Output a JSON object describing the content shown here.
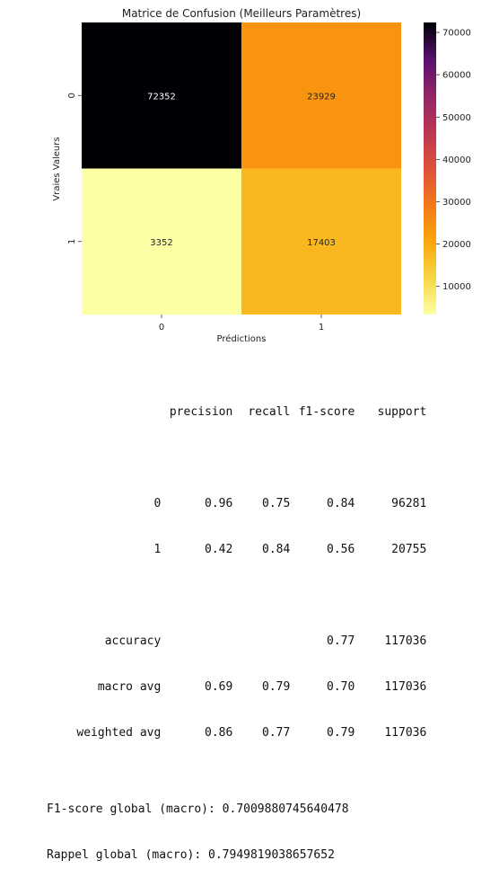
{
  "chart_data": {
    "type": "heatmap",
    "title": "Matrice de Confusion (Meilleurs Paramètres)",
    "xlabel": "Prédictions",
    "ylabel": "Vraies Valeurs",
    "x_categories": [
      "0",
      "1"
    ],
    "y_categories": [
      "0",
      "1"
    ],
    "values": [
      [
        72352,
        23929
      ],
      [
        3352,
        17403
      ]
    ],
    "colormap": "inferno",
    "colorbar": {
      "range": [
        3352,
        72352
      ],
      "ticks": [
        10000,
        20000,
        30000,
        40000,
        50000,
        60000,
        70000
      ],
      "tick_labels": [
        "10000",
        "20000",
        "30000",
        "40000",
        "50000",
        "60000",
        "70000"
      ]
    }
  },
  "report": {
    "headers": [
      "precision",
      "recall",
      "f1-score",
      "support"
    ],
    "class_rows": [
      {
        "label": "0",
        "precision": "0.96",
        "recall": "0.75",
        "f1": "0.84",
        "support": "96281"
      },
      {
        "label": "1",
        "precision": "0.42",
        "recall": "0.84",
        "f1": "0.56",
        "support": "20755"
      }
    ],
    "accuracy": {
      "label": "accuracy",
      "f1": "0.77",
      "support": "117036"
    },
    "avg_rows": [
      {
        "label": "macro avg",
        "precision": "0.69",
        "recall": "0.79",
        "f1": "0.70",
        "support": "117036"
      },
      {
        "label": "weighted avg",
        "precision": "0.86",
        "recall": "0.77",
        "f1": "0.79",
        "support": "117036"
      }
    ],
    "f1_global": "F1-score global (macro): 0.7009880745640478",
    "recall_global": "Rappel global (macro): 0.7949819038657652"
  }
}
